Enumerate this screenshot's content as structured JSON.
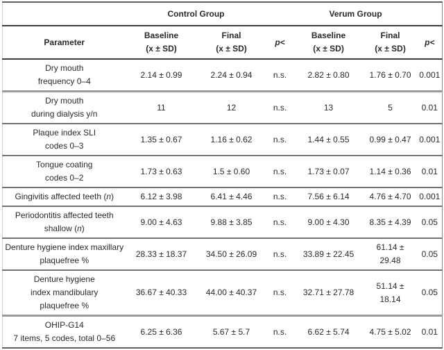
{
  "colors": {
    "text": "#2a2a2a",
    "outer_border": "#5f5f5f",
    "header_line": "#3d3d3d",
    "row_separator": "#737373",
    "thick_separator": "#9a9a9a"
  },
  "table": {
    "groups": {
      "control": "Control Group",
      "verum": "Verum Group"
    },
    "header": {
      "parameter": "Parameter",
      "baseline": "Baseline",
      "final": "Final",
      "stat": "(x ± SD)",
      "p": "p<"
    },
    "rows": [
      {
        "parameter": [
          "Dry mouth",
          "frequency 0–4"
        ],
        "control": {
          "baseline": "2.14 ± 0.99",
          "final": "2.24 ± 0.94",
          "p": "n.s."
        },
        "verum": {
          "baseline": "2.82 ± 0.80",
          "final": "1.76 ± 0.70",
          "p": "0.001"
        },
        "thick_top": false
      },
      {
        "parameter": [
          "Dry mouth",
          "during dialysis y/n"
        ],
        "control": {
          "baseline": "11",
          "final": "12",
          "p": "n.s."
        },
        "verum": {
          "baseline": "13",
          "final": "5",
          "p": "0.01"
        },
        "thick_top": true
      },
      {
        "parameter": [
          "Plaque index SLI",
          "codes 0–3"
        ],
        "control": {
          "baseline": "1.35 ± 0.67",
          "final": "1.16 ± 0.62",
          "p": "n.s."
        },
        "verum": {
          "baseline": "1.44 ± 0.55",
          "final": "0.99 ± 0.47",
          "p": "0.001"
        },
        "thick_top": false
      },
      {
        "parameter": [
          "Tongue coating",
          "codes 0–2"
        ],
        "control": {
          "baseline": "1.73 ± 0.63",
          "final": "1.5 ± 0.60",
          "p": "n.s."
        },
        "verum": {
          "baseline": "1.73 ± 0.07",
          "final": "1.14 ± 0.36",
          "p": "0.01"
        },
        "thick_top": false
      },
      {
        "parameter": [
          "Gingivitis affected teeth (n)"
        ],
        "control": {
          "baseline": "6.12 ± 3.98",
          "final": "6.41 ± 4.46",
          "p": "n.s."
        },
        "verum": {
          "baseline": "7.56 ± 6.14",
          "final": "4.76 ± 4.70",
          "p": "0.001"
        },
        "thick_top": false
      },
      {
        "parameter": [
          "Periodontitis affected teeth",
          "shallow (n)"
        ],
        "control": {
          "baseline": "9.00 ± 4.63",
          "final": "9.88 ± 3.85",
          "p": "n.s."
        },
        "verum": {
          "baseline": "9.00 ± 4.30",
          "final": "8.35 ± 4.39",
          "p": "0.05"
        },
        "thick_top": false
      },
      {
        "parameter": [
          "Denture hygiene index maxillary",
          "plaquefree %"
        ],
        "control": {
          "baseline": "28.33 ± 18.37",
          "final": "34.50 ± 26.09",
          "p": "n.s."
        },
        "verum": {
          "baseline": "33.89 ± 22.45",
          "final": [
            "61.14 ±",
            "29.48"
          ],
          "p": "0.05"
        },
        "thick_top": false
      },
      {
        "parameter": [
          "Denture hygiene",
          "index mandibulary",
          "plaquefree %"
        ],
        "control": {
          "baseline": "36.67 ± 40.33",
          "final": "44.00 ± 40.37",
          "p": "n.s."
        },
        "verum": {
          "baseline": "32.71 ± 27.78",
          "final": [
            "51.14 ±",
            "18.14"
          ],
          "p": "0.05"
        },
        "thick_top": false
      },
      {
        "parameter": [
          "OHIP-G14",
          "7 items, 5 codes, total 0–56"
        ],
        "control": {
          "baseline": "6.25 ± 6.36",
          "final": "5.67 ± 5.7",
          "p": "n.s."
        },
        "verum": {
          "baseline": "6.62 ± 5.74",
          "final": "4.75 ± 5.02",
          "p": "0.01"
        },
        "thick_top": true
      }
    ]
  }
}
